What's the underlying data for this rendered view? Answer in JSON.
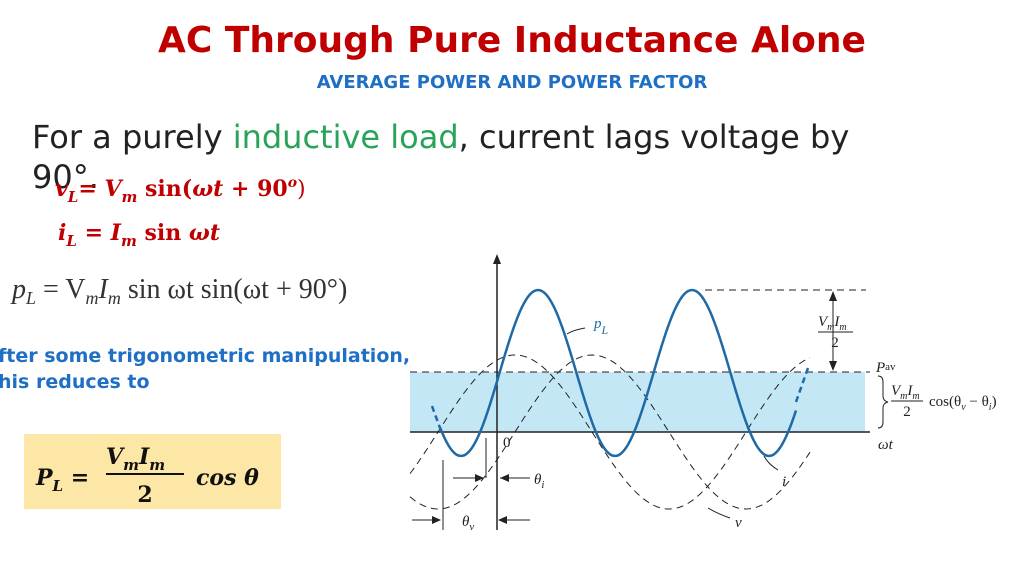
{
  "header": {
    "title": "AC Through Pure Inductance Alone",
    "subtitle": "AVERAGE POWER AND POWER FACTOR"
  },
  "intro": {
    "before": "For a purely ",
    "highlight": "inductive load",
    "after": ", current lags voltage by",
    "wrap": "90°."
  },
  "equations": {
    "voltage": [
      "v",
      "L",
      "= ",
      "V",
      "m",
      " sin(",
      "ωt",
      " + 90",
      "o",
      ")"
    ],
    "current": [
      "i",
      "L",
      " = ",
      "I",
      "m",
      " sin ",
      "ωt"
    ],
    "power": [
      "p",
      "L",
      " = V",
      "m",
      "I",
      "m",
      "  sin ωt  sin(ωt + 90°)"
    ]
  },
  "note": [
    "fter some trigonometric manipulation,",
    "his reduces to"
  ],
  "result": {
    "lhs": [
      "P",
      "L",
      " ="
    ],
    "num": [
      "V",
      "m",
      "I",
      "m"
    ],
    "den": "2",
    "rhs": "cos θ"
  },
  "diagram": {
    "pl": [
      "p",
      "L"
    ],
    "origin": "0",
    "axis": "ωt",
    "theta_i": [
      "θ",
      "i"
    ],
    "theta_v": [
      "θ",
      "v"
    ],
    "i": "i",
    "v": "v",
    "pav": [
      "P",
      "av"
    ],
    "peak_num": [
      "V",
      "m",
      "I",
      "m"
    ],
    "peak_den": "2",
    "avg_num": [
      "V",
      "m",
      "I",
      "m"
    ],
    "avg_den": "2",
    "avg_cos": [
      "cos(θ",
      "v",
      " − θ",
      "i",
      ")"
    ]
  }
}
